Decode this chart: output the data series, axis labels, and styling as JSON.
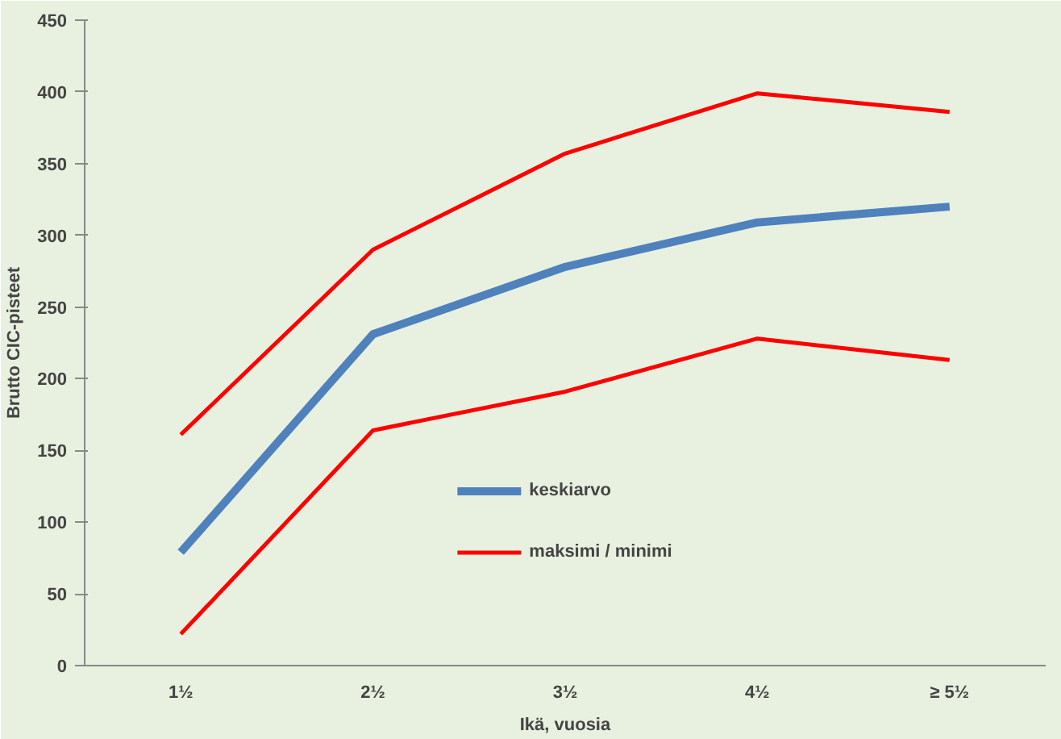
{
  "chart_data": {
    "type": "line",
    "xlabel": "Ikä, vuosia",
    "ylabel": "Brutto CIC-pisteet",
    "categories": [
      "1½",
      "2½",
      "3½",
      "4½",
      "≥ 5½"
    ],
    "ylim": [
      0,
      450
    ],
    "yticks": [
      0,
      50,
      100,
      150,
      200,
      250,
      300,
      350,
      400,
      450
    ],
    "grid": false,
    "legend": "bottom",
    "marker": "none",
    "series": [
      {
        "name": "keskiarvo",
        "color": "#4f81bd",
        "values": [
          79,
          231,
          278,
          309,
          320
        ]
      },
      {
        "name": "maksimi / minimi",
        "color": "#ff0000",
        "values": [
          161,
          290,
          357,
          399,
          386
        ]
      },
      {
        "color": "#ff0000",
        "values": [
          22,
          164,
          191,
          228,
          213
        ]
      }
    ]
  }
}
